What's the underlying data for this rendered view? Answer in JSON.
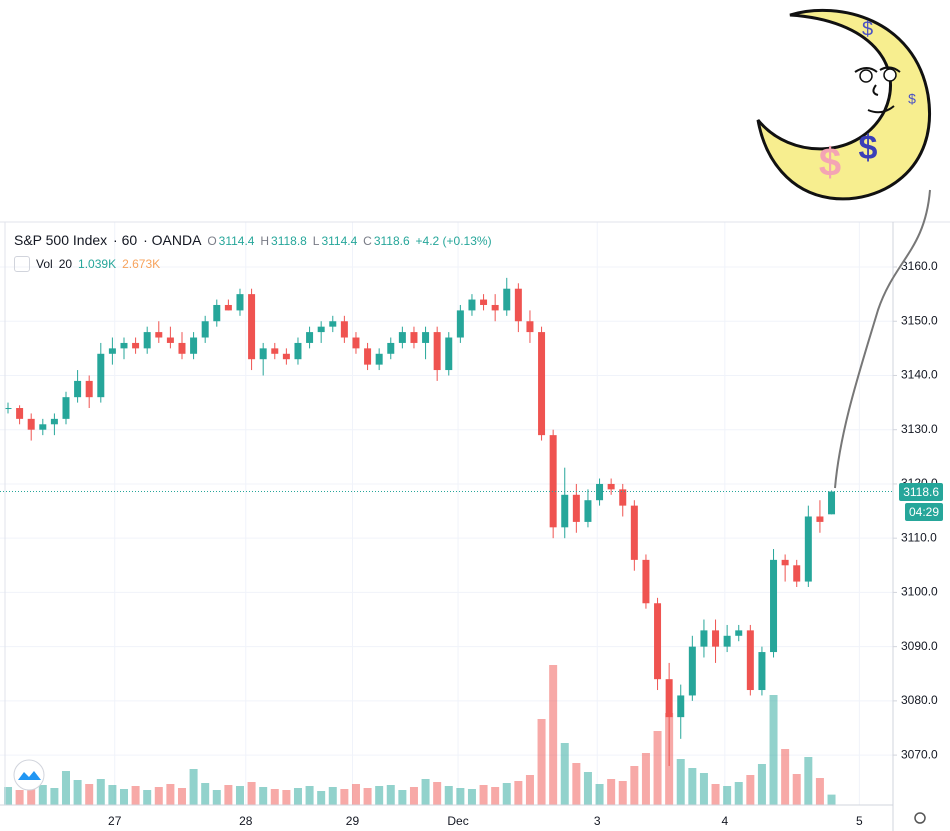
{
  "chart_data": {
    "type": "candlestick",
    "title": "S&P 500 Index",
    "interval": 60,
    "source": "OANDA",
    "ohlc_letters": [
      "O",
      "H",
      "L",
      "C"
    ],
    "change_label": "+4.2 (+0.13%)",
    "volume_name": "Vol",
    "volume_length": 20,
    "volume_value_label": "1.039K",
    "volume_ma_label": "2.673K",
    "countdown": "04:29",
    "moon_marks": [
      "$",
      "$",
      "$",
      "$"
    ],
    "up_color": "#26a69a",
    "down_color": "#ef5350",
    "grid": true,
    "open": [
      3134,
      3134,
      3132,
      3130,
      3131,
      3132,
      3136,
      3139,
      3136,
      3144,
      3145,
      3146,
      3145,
      3148,
      3147,
      3146,
      3144,
      3147,
      3150,
      3153,
      3152,
      3155,
      3143,
      3145,
      3144,
      3143,
      3146,
      3148,
      3149,
      3150,
      3147,
      3145,
      3142,
      3144,
      3146,
      3148,
      3146,
      3148,
      3141,
      3147,
      3152,
      3154,
      3153,
      3152,
      3156,
      3150,
      3148,
      3129,
      3112,
      3118,
      3113,
      3117,
      3120,
      3119,
      3116,
      3106,
      3098,
      3084,
      3077,
      3081,
      3090,
      3093,
      3090,
      3092,
      3093,
      3082,
      3089,
      3106,
      3105,
      3102,
      3114,
      3114.4
    ],
    "high": [
      3135,
      3134.5,
      3133,
      3132,
      3133,
      3137,
      3141,
      3140,
      3146,
      3147,
      3147,
      3147,
      3149,
      3150,
      3149,
      3148,
      3148,
      3151,
      3154,
      3154,
      3156,
      3156,
      3146,
      3146,
      3145,
      3147,
      3149,
      3150,
      3151,
      3151,
      3148,
      3146,
      3145,
      3147,
      3149,
      3149,
      3149,
      3149,
      3148,
      3153,
      3155,
      3155,
      3155,
      3158,
      3157,
      3152,
      3149,
      3130,
      3123,
      3120,
      3119,
      3121,
      3121,
      3120,
      3117,
      3107,
      3099,
      3087,
      3083,
      3092,
      3095,
      3095,
      3094,
      3094,
      3094,
      3090,
      3108,
      3107,
      3106,
      3116,
      3117,
      3118.8
    ],
    "low": [
      3133,
      3131,
      3128,
      3129,
      3129,
      3131,
      3135,
      3134,
      3135,
      3142,
      3143,
      3144,
      3144,
      3146,
      3145,
      3143,
      3143,
      3146,
      3149,
      3152,
      3151,
      3141,
      3140,
      3143,
      3142,
      3142,
      3145,
      3146,
      3148,
      3146,
      3144,
      3141,
      3141,
      3143,
      3145,
      3145,
      3143,
      3139,
      3140,
      3146,
      3151,
      3152,
      3150,
      3151,
      3148,
      3146,
      3128,
      3110,
      3110,
      3111,
      3112,
      3116,
      3118,
      3114,
      3104,
      3097,
      3082,
      3068,
      3073,
      3080,
      3088,
      3087,
      3089,
      3091,
      3081,
      3081,
      3088,
      3102,
      3101,
      3101,
      3111,
      3114.4
    ],
    "close": [
      3134,
      3132,
      3130,
      3131,
      3132,
      3136,
      3139,
      3136,
      3144,
      3145,
      3146,
      3145,
      3148,
      3147,
      3146,
      3144,
      3147,
      3150,
      3153,
      3152,
      3155,
      3143,
      3145,
      3144,
      3143,
      3146,
      3148,
      3149,
      3150,
      3147,
      3145,
      3142,
      3144,
      3146,
      3148,
      3146,
      3148,
      3141,
      3147,
      3152,
      3154,
      3153,
      3152,
      3156,
      3150,
      3148,
      3129,
      3112,
      3118,
      3113,
      3117,
      3120,
      3119,
      3116,
      3106,
      3098,
      3084,
      3077,
      3081,
      3090,
      3093,
      3090,
      3092,
      3093,
      3082,
      3089,
      3106,
      3105,
      3102,
      3114,
      3113,
      3118.6
    ],
    "volume": [
      1800,
      1500,
      2200,
      2000,
      1700,
      3400,
      2500,
      2100,
      2600,
      2000,
      1600,
      1900,
      1500,
      1800,
      2100,
      1700,
      3600,
      2200,
      1500,
      2000,
      1900,
      2300,
      1800,
      1600,
      1500,
      1700,
      1900,
      1400,
      1800,
      1600,
      2100,
      1700,
      1900,
      2000,
      1500,
      1800,
      2600,
      2300,
      1900,
      1700,
      1600,
      2000,
      1800,
      2200,
      2400,
      3000,
      8600,
      14000,
      6200,
      4200,
      3300,
      2100,
      2600,
      2400,
      3900,
      5200,
      7400,
      9200,
      4600,
      3700,
      3200,
      2100,
      1900,
      2300,
      3000,
      4100,
      11000,
      5600,
      3100,
      4800,
      2700,
      1039
    ],
    "xlim": [
      -0.69,
      76.3
    ],
    "xticks": [
      {
        "value": 9.2,
        "label": "27"
      },
      {
        "value": 20.5,
        "label": "28"
      },
      {
        "value": 29.7,
        "label": "29"
      },
      {
        "value": 38.8,
        "label": "Dec"
      },
      {
        "value": 50.8,
        "label": "3"
      },
      {
        "value": 61.8,
        "label": "4"
      },
      {
        "value": 73.4,
        "label": "5"
      }
    ],
    "ylim": [
      3060.8,
      3168.3
    ],
    "yticks": [
      {
        "value": 3070,
        "label": "3070.0"
      },
      {
        "value": 3080,
        "label": "3080.0"
      },
      {
        "value": 3090,
        "label": "3090.0"
      },
      {
        "value": 3100,
        "label": "3100.0"
      },
      {
        "value": 3110,
        "label": "3110.0"
      },
      {
        "value": 3120,
        "label": "3120.0"
      },
      {
        "value": 3130,
        "label": "3130.0"
      },
      {
        "value": 3140,
        "label": "3140.0"
      },
      {
        "value": 3150,
        "label": "3150.0"
      },
      {
        "value": 3160,
        "label": "3160.0"
      }
    ],
    "vlim": [
      0,
      58300
    ]
  }
}
